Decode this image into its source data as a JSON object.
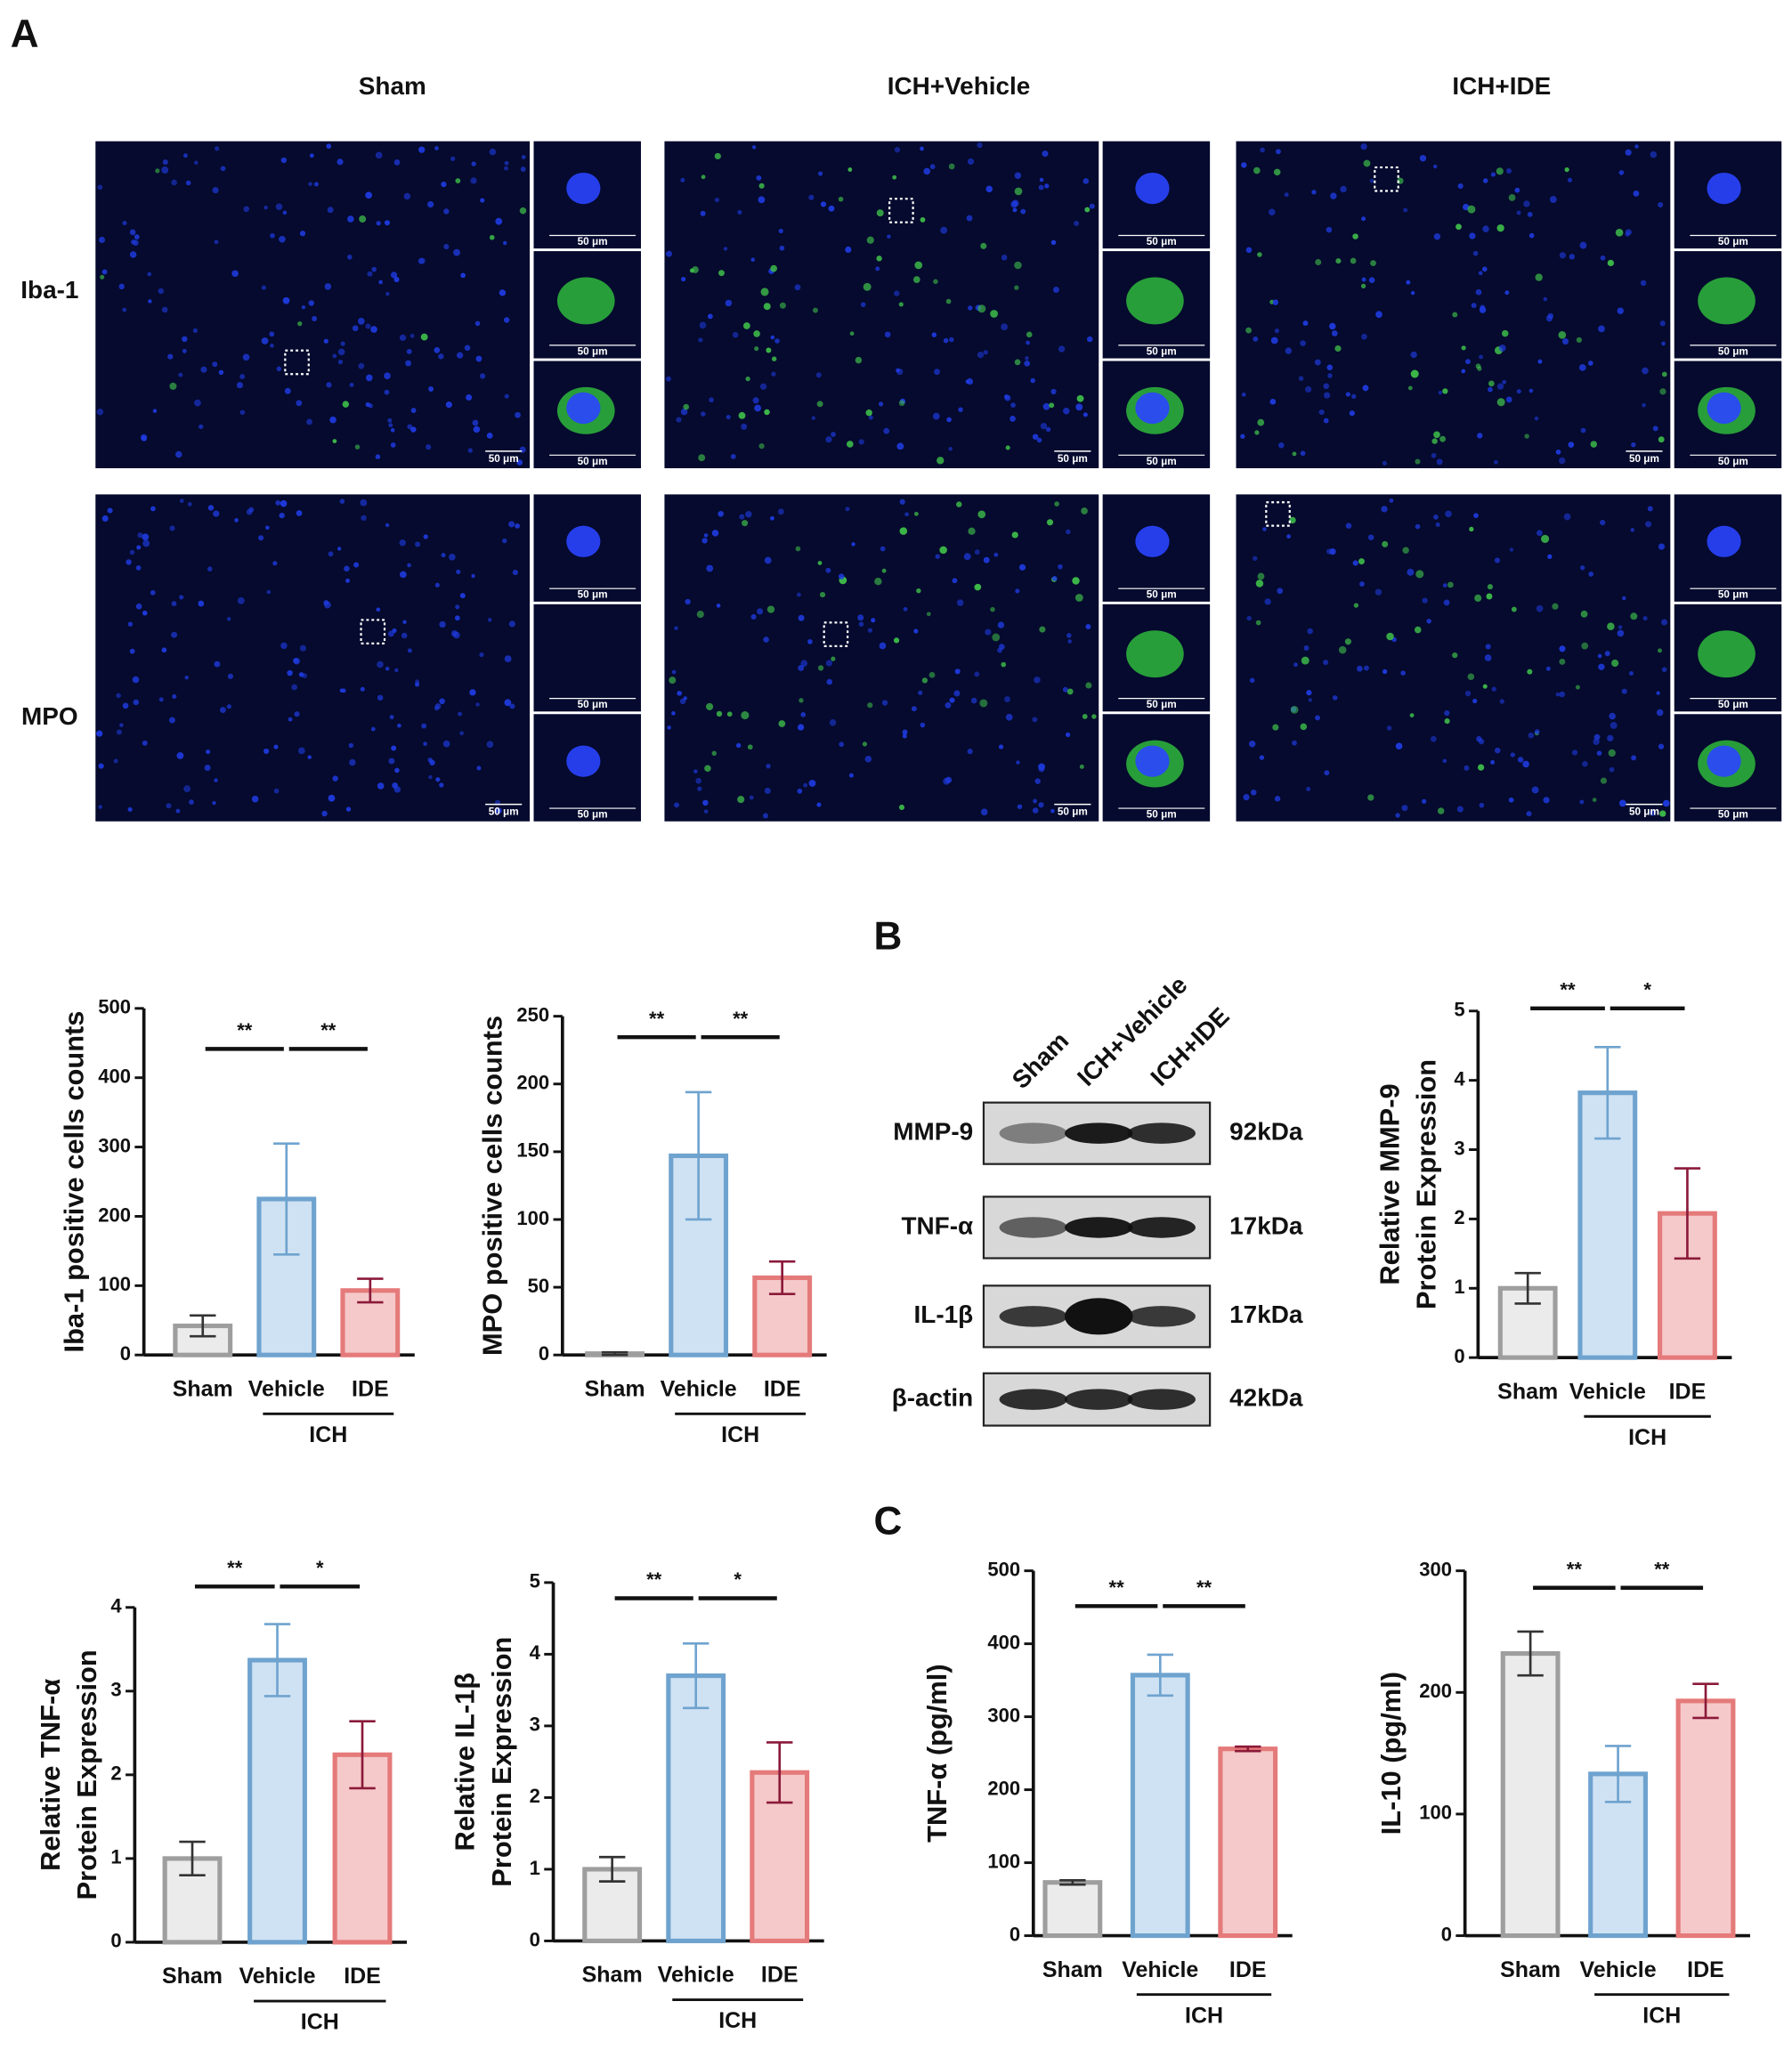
{
  "panel_letters": [
    "A",
    "B",
    "C"
  ],
  "microscopy": {
    "columns": [
      "Sham",
      "ICH+Vehicle",
      "ICH+IDE"
    ],
    "rows": [
      "Iba-1",
      "MPO"
    ],
    "scale_bar": "50 μm"
  },
  "western_blot": {
    "lanes": [
      "Sham",
      "ICH+Vehicle",
      "ICH+IDE"
    ],
    "proteins": [
      {
        "name": "MMP-9",
        "size": "92kDa"
      },
      {
        "name": "TNF-α",
        "size": "17kDa"
      },
      {
        "name": "IL-1β",
        "size": "17kDa"
      },
      {
        "name": "β-actin",
        "size": "42kDa"
      }
    ]
  },
  "chart_data": [
    {
      "type": "bar",
      "y_label": [
        "Iba-1 positive cells counts"
      ],
      "categories": [
        "Sham",
        "Vehicle",
        "IDE"
      ],
      "values": [
        42,
        225,
        93
      ],
      "errors": [
        15,
        80,
        17
      ],
      "colors": [
        "#9e9e9e",
        "#6fa3cf",
        "#e57a7a"
      ],
      "fill_colors": [
        "#ebebeb",
        "#cfe2f3",
        "#f5c9c9"
      ],
      "error_colors": [
        "#333333",
        "#6fa3cf",
        "#8b1a3a"
      ],
      "ylim": [
        0,
        500
      ],
      "yticks": [
        0,
        100,
        200,
        300,
        400,
        500
      ],
      "significance": [
        {
          "label": "**",
          "from": 0,
          "to": 1
        },
        {
          "label": "**",
          "from": 1,
          "to": 2
        }
      ],
      "group": {
        "label": "ICH",
        "from": 1,
        "to": 2
      }
    },
    {
      "type": "bar",
      "y_label": [
        "MPO positive cells counts"
      ],
      "categories": [
        "Sham",
        "Vehicle",
        "IDE"
      ],
      "values": [
        1,
        147,
        57
      ],
      "errors": [
        1,
        47,
        12
      ],
      "colors": [
        "#9e9e9e",
        "#6fa3cf",
        "#e57a7a"
      ],
      "fill_colors": [
        "#ebebeb",
        "#cfe2f3",
        "#f5c9c9"
      ],
      "error_colors": [
        "#333333",
        "#6fa3cf",
        "#8b1a3a"
      ],
      "ylim": [
        0,
        250
      ],
      "yticks": [
        0,
        50,
        100,
        150,
        200,
        250
      ],
      "significance": [
        {
          "label": "**",
          "from": 0,
          "to": 1
        },
        {
          "label": "**",
          "from": 1,
          "to": 2
        }
      ],
      "group": {
        "label": "ICH",
        "from": 1,
        "to": 2
      }
    },
    {
      "type": "bar",
      "y_label": [
        "Relative MMP-9",
        "Protein Expression"
      ],
      "categories": [
        "Sham",
        "Vehicle",
        "IDE"
      ],
      "values": [
        1.0,
        3.82,
        2.08
      ],
      "errors": [
        0.22,
        0.66,
        0.65
      ],
      "colors": [
        "#9e9e9e",
        "#6fa3cf",
        "#e57a7a"
      ],
      "fill_colors": [
        "#ebebeb",
        "#cfe2f3",
        "#f5c9c9"
      ],
      "error_colors": [
        "#333333",
        "#6fa3cf",
        "#8b1a3a"
      ],
      "ylim": [
        0,
        5
      ],
      "yticks": [
        0,
        1,
        2,
        3,
        4,
        5
      ],
      "significance": [
        {
          "label": "**",
          "from": 0,
          "to": 1
        },
        {
          "label": "*",
          "from": 1,
          "to": 2
        }
      ],
      "group": {
        "label": "ICH",
        "from": 1,
        "to": 2
      }
    },
    {
      "type": "bar",
      "y_label": [
        "Relative TNF-α",
        "Protein Expression"
      ],
      "categories": [
        "Sham",
        "Vehicle",
        "IDE"
      ],
      "values": [
        1.0,
        3.37,
        2.24
      ],
      "errors": [
        0.2,
        0.43,
        0.4
      ],
      "colors": [
        "#9e9e9e",
        "#6fa3cf",
        "#e57a7a"
      ],
      "fill_colors": [
        "#ebebeb",
        "#cfe2f3",
        "#f5c9c9"
      ],
      "error_colors": [
        "#333333",
        "#6fa3cf",
        "#8b1a3a"
      ],
      "ylim": [
        0,
        4
      ],
      "yticks": [
        0,
        1,
        2,
        3,
        4
      ],
      "significance": [
        {
          "label": "**",
          "from": 0,
          "to": 1
        },
        {
          "label": "*",
          "from": 1,
          "to": 2
        }
      ],
      "group": {
        "label": "ICH",
        "from": 1,
        "to": 2
      }
    },
    {
      "type": "bar",
      "y_label": [
        "Relative IL-1β",
        "Protein Expression"
      ],
      "categories": [
        "Sham",
        "Vehicle",
        "IDE"
      ],
      "values": [
        1.0,
        3.7,
        2.35
      ],
      "errors": [
        0.17,
        0.45,
        0.42
      ],
      "colors": [
        "#9e9e9e",
        "#6fa3cf",
        "#e57a7a"
      ],
      "fill_colors": [
        "#ebebeb",
        "#cfe2f3",
        "#f5c9c9"
      ],
      "error_colors": [
        "#333333",
        "#6fa3cf",
        "#8b1a3a"
      ],
      "ylim": [
        0,
        5
      ],
      "yticks": [
        0,
        1,
        2,
        3,
        4,
        5
      ],
      "significance": [
        {
          "label": "**",
          "from": 0,
          "to": 1
        },
        {
          "label": "*",
          "from": 1,
          "to": 2
        }
      ],
      "group": {
        "label": "ICH",
        "from": 1,
        "to": 2
      }
    },
    {
      "type": "bar",
      "y_label": [
        "TNF-α (pg/ml)"
      ],
      "categories": [
        "Sham",
        "Vehicle",
        "IDE"
      ],
      "values": [
        73,
        357,
        256
      ],
      "errors": [
        3,
        28,
        3
      ],
      "colors": [
        "#9e9e9e",
        "#6fa3cf",
        "#e57a7a"
      ],
      "fill_colors": [
        "#ebebeb",
        "#cfe2f3",
        "#f5c9c9"
      ],
      "error_colors": [
        "#333333",
        "#6fa3cf",
        "#8b1a3a"
      ],
      "ylim": [
        0,
        500
      ],
      "yticks": [
        0,
        100,
        200,
        300,
        400,
        500
      ],
      "significance": [
        {
          "label": "**",
          "from": 0,
          "to": 1
        },
        {
          "label": "**",
          "from": 1,
          "to": 2
        }
      ],
      "group": {
        "label": "ICH",
        "from": 1,
        "to": 2
      }
    },
    {
      "type": "bar",
      "y_label": [
        "IL-10 (pg/ml)"
      ],
      "categories": [
        "Sham",
        "Vehicle",
        "IDE"
      ],
      "values": [
        232,
        133,
        193
      ],
      "errors": [
        18,
        23,
        14
      ],
      "colors": [
        "#9e9e9e",
        "#6fa3cf",
        "#e57a7a"
      ],
      "fill_colors": [
        "#ebebeb",
        "#cfe2f3",
        "#f5c9c9"
      ],
      "error_colors": [
        "#333333",
        "#6fa3cf",
        "#8b1a3a"
      ],
      "ylim": [
        0,
        300
      ],
      "yticks": [
        0,
        100,
        200,
        300
      ],
      "significance": [
        {
          "label": "**",
          "from": 0,
          "to": 1
        },
        {
          "label": "**",
          "from": 1,
          "to": 2
        }
      ],
      "group": {
        "label": "ICH",
        "from": 1,
        "to": 2
      }
    }
  ]
}
